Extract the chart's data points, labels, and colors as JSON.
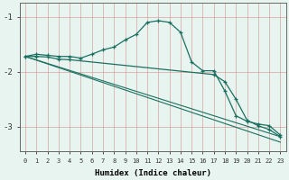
{
  "xlabel": "Humidex (Indice chaleur)",
  "background_color": "#e8f4f0",
  "grid_color": "#d08080",
  "line_color": "#1a7060",
  "xlim": [
    -0.5,
    23.5
  ],
  "ylim": [
    -3.45,
    -0.75
  ],
  "yticks": [
    -3,
    -2,
    -1
  ],
  "xticks": [
    0,
    1,
    2,
    3,
    4,
    5,
    6,
    7,
    8,
    9,
    10,
    11,
    12,
    13,
    14,
    15,
    16,
    17,
    18,
    19,
    20,
    21,
    22,
    23
  ],
  "series": [
    {
      "x": [
        0,
        1,
        2,
        3,
        4,
        5,
        6,
        7,
        8,
        9,
        10,
        11,
        12,
        13,
        14,
        15,
        16,
        17,
        18,
        19,
        20,
        21,
        22,
        23
      ],
      "y": [
        -1.72,
        -1.68,
        -1.7,
        -1.72,
        -1.72,
        -1.75,
        -1.68,
        -1.6,
        -1.55,
        -1.42,
        -1.32,
        -1.1,
        -1.07,
        -1.1,
        -1.28,
        -1.82,
        -1.98,
        -1.98,
        -2.35,
        -2.8,
        -2.9,
        -2.95,
        -2.98,
        -3.15
      ],
      "marker": true
    },
    {
      "x": [
        0,
        1,
        2,
        3,
        4,
        17,
        18,
        19,
        20,
        21,
        22,
        23
      ],
      "y": [
        -1.72,
        -1.72,
        -1.73,
        -1.77,
        -1.78,
        -2.05,
        -2.18,
        -2.5,
        -2.88,
        -2.98,
        -3.05,
        -3.18
      ],
      "marker": true
    },
    {
      "x": [
        0,
        23
      ],
      "y": [
        -1.72,
        -3.18
      ],
      "marker": false
    },
    {
      "x": [
        0,
        23
      ],
      "y": [
        -1.72,
        -3.28
      ],
      "marker": false
    }
  ]
}
